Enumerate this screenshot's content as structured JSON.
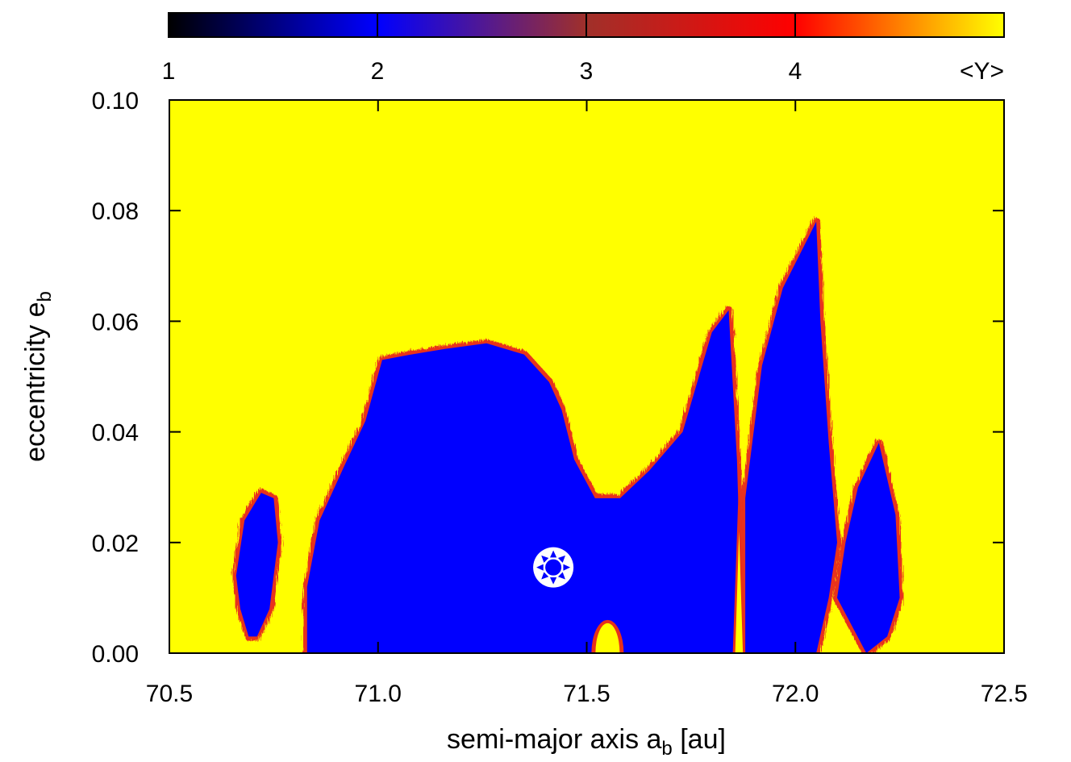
{
  "chart_data": {
    "type": "heatmap",
    "title": "",
    "xlabel_main": "semi-major axis a",
    "xlabel_sub": "b",
    "xlabel_unit": " [au]",
    "ylabel_main": "eccentricity e",
    "ylabel_sub": "b",
    "xlim": [
      70.5,
      72.5
    ],
    "ylim": [
      0.0,
      0.1
    ],
    "x_ticks": [
      "70.5",
      "71.0",
      "71.5",
      "72.0",
      "72.5"
    ],
    "x_tick_values": [
      70.5,
      71.0,
      71.5,
      72.0,
      72.5
    ],
    "y_ticks": [
      "0.00",
      "0.02",
      "0.04",
      "0.06",
      "0.08",
      "0.10"
    ],
    "y_tick_values": [
      0.0,
      0.02,
      0.04,
      0.06,
      0.08,
      0.1
    ],
    "colorbar": {
      "label": "<Y>",
      "range": [
        1,
        5
      ],
      "ticks": [
        "1",
        "2",
        "3",
        "4"
      ],
      "tick_values": [
        1,
        2,
        3,
        4
      ],
      "stops": [
        {
          "value": 1.0,
          "color": "#000000"
        },
        {
          "value": 2.0,
          "color": "#0000ff"
        },
        {
          "value": 3.0,
          "color": "#a0302a"
        },
        {
          "value": 4.0,
          "color": "#ff0000"
        },
        {
          "value": 5.0,
          "color": "#ffff00"
        }
      ]
    },
    "background_value": 5,
    "background_color": "#ffff00",
    "stable_color": "#0000ff",
    "chaotic_edge_color": "#e8301a",
    "stable_regions": [
      {
        "name": "left-island",
        "a_range": [
          70.66,
          70.76
        ],
        "e_top": 0.031,
        "points": [
          [
            70.66,
            0.014
          ],
          [
            70.68,
            0.024
          ],
          [
            70.72,
            0.029
          ],
          [
            70.75,
            0.028
          ],
          [
            70.76,
            0.02
          ],
          [
            70.74,
            0.008
          ],
          [
            70.71,
            0.003
          ],
          [
            70.69,
            0.003
          ],
          [
            70.67,
            0.008
          ]
        ]
      },
      {
        "name": "main-dome",
        "a_range": [
          70.81,
          71.58
        ],
        "points": [
          [
            70.83,
            0.0
          ],
          [
            70.83,
            0.012
          ],
          [
            70.86,
            0.024
          ],
          [
            70.92,
            0.034
          ],
          [
            70.97,
            0.042
          ],
          [
            71.01,
            0.053
          ],
          [
            71.08,
            0.054
          ],
          [
            71.16,
            0.055
          ],
          [
            71.26,
            0.056
          ],
          [
            71.35,
            0.054
          ],
          [
            71.41,
            0.049
          ],
          [
            71.44,
            0.044
          ],
          [
            71.47,
            0.035
          ],
          [
            71.52,
            0.028
          ],
          [
            71.58,
            0.028
          ],
          [
            71.6,
            0.01
          ],
          [
            71.58,
            0.0
          ]
        ]
      },
      {
        "name": "central-band",
        "a_range": [
          71.58,
          72.05
        ],
        "points": [
          [
            71.58,
            0.0
          ],
          [
            71.58,
            0.028
          ],
          [
            71.65,
            0.033
          ],
          [
            71.73,
            0.04
          ],
          [
            71.8,
            0.058
          ],
          [
            71.84,
            0.062
          ],
          [
            71.86,
            0.035
          ],
          [
            71.87,
            0.01
          ],
          [
            71.85,
            0.0
          ]
        ]
      },
      {
        "name": "right-peak",
        "a_range": [
          71.88,
          72.1
        ],
        "points": [
          [
            71.88,
            0.0
          ],
          [
            71.88,
            0.028
          ],
          [
            71.92,
            0.052
          ],
          [
            71.97,
            0.066
          ],
          [
            72.03,
            0.075
          ],
          [
            72.05,
            0.078
          ],
          [
            72.06,
            0.06
          ],
          [
            72.08,
            0.038
          ],
          [
            72.1,
            0.02
          ],
          [
            72.08,
            0.01
          ],
          [
            72.05,
            0.0
          ]
        ]
      },
      {
        "name": "right-fringe",
        "a_range": [
          72.1,
          72.26
        ],
        "points": [
          [
            72.1,
            0.01
          ],
          [
            72.12,
            0.02
          ],
          [
            72.15,
            0.03
          ],
          [
            72.2,
            0.038
          ],
          [
            72.24,
            0.025
          ],
          [
            72.25,
            0.01
          ],
          [
            72.22,
            0.003
          ],
          [
            72.17,
            0.0
          ]
        ]
      }
    ],
    "unstable_pockets": [
      {
        "name": "bottom-yellow-pocket",
        "a_center": 71.55,
        "e_top": 0.006
      },
      {
        "name": "gap-near-71.87",
        "a_range": [
          71.85,
          71.88
        ]
      }
    ],
    "marker": {
      "name": "nominal-position",
      "a": 71.42,
      "e": 0.0155,
      "symbol": "sun"
    }
  }
}
